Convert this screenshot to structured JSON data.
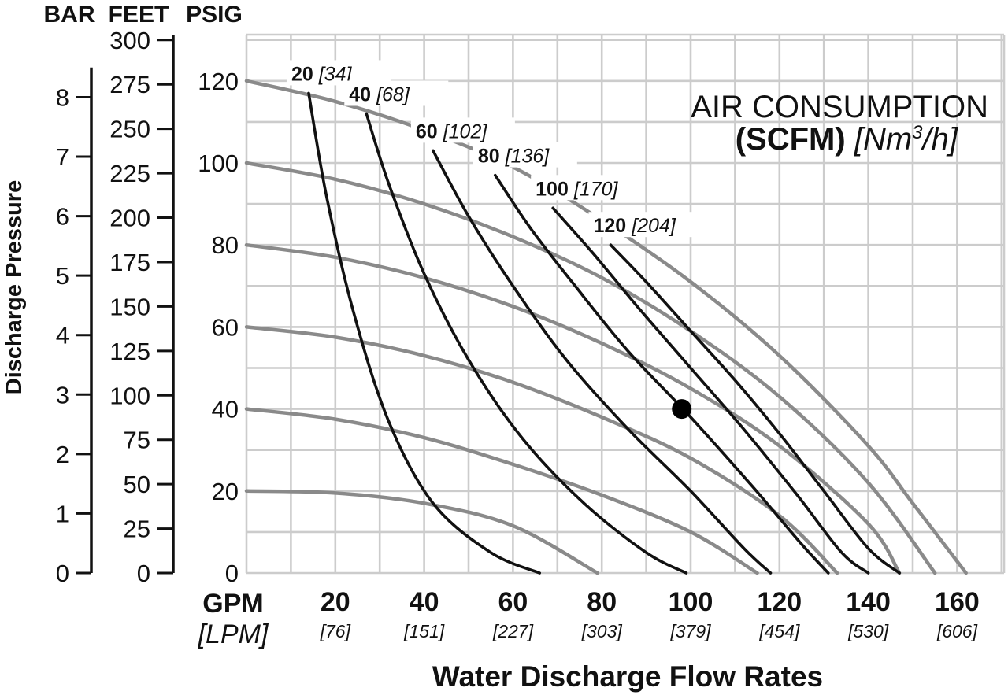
{
  "chart_data": {
    "type": "line",
    "title_line1": "AIR CONSUMPTION",
    "title_line2_bold": "(SCFM)",
    "title_line2_italic": "[Nm",
    "title_line2_sup": "3",
    "title_line2_tail": "/h]",
    "ylabel": "Discharge Pressure",
    "xlabel": "Water Discharge Flow Rates",
    "x_unit_main": "GPM",
    "x_unit_alt": "[LPM]",
    "xlim": [
      0,
      170
    ],
    "ylim": [
      0,
      130
    ],
    "x_ticks": [
      {
        "gpm": "20",
        "lpm": "[76]",
        "value": 20
      },
      {
        "gpm": "40",
        "lpm": "[151]",
        "value": 40
      },
      {
        "gpm": "60",
        "lpm": "[227]",
        "value": 60
      },
      {
        "gpm": "80",
        "lpm": "[303]",
        "value": 80
      },
      {
        "gpm": "100",
        "lpm": "[379]",
        "value": 100
      },
      {
        "gpm": "120",
        "lpm": "[454]",
        "value": 120
      },
      {
        "gpm": "140",
        "lpm": "[530]",
        "value": 140
      },
      {
        "gpm": "160",
        "lpm": "[606]",
        "value": 160
      }
    ],
    "psig_axis": {
      "header": "PSIG",
      "ticks": [
        {
          "label": "0",
          "value": 0
        },
        {
          "label": "20",
          "value": 20
        },
        {
          "label": "40",
          "value": 40
        },
        {
          "label": "60",
          "value": 60
        },
        {
          "label": "80",
          "value": 80
        },
        {
          "label": "100",
          "value": 100
        },
        {
          "label": "120",
          "value": 120
        }
      ]
    },
    "feet_axis": {
      "header": "FEET",
      "psig_per_unit": 0.4333,
      "ticks": [
        {
          "label": "0",
          "value": 0
        },
        {
          "label": "25",
          "value": 25
        },
        {
          "label": "50",
          "value": 50
        },
        {
          "label": "75",
          "value": 75
        },
        {
          "label": "100",
          "value": 100
        },
        {
          "label": "125",
          "value": 125
        },
        {
          "label": "150",
          "value": 150
        },
        {
          "label": "175",
          "value": 175
        },
        {
          "label": "200",
          "value": 200
        },
        {
          "label": "225",
          "value": 225
        },
        {
          "label": "250",
          "value": 250
        },
        {
          "label": "275",
          "value": 275
        },
        {
          "label": "300",
          "value": 300
        }
      ]
    },
    "bar_axis": {
      "header": "BAR",
      "psig_per_unit": 14.5038,
      "ticks": [
        {
          "label": "0",
          "value": 0
        },
        {
          "label": "1",
          "value": 1
        },
        {
          "label": "2",
          "value": 2
        },
        {
          "label": "3",
          "value": 3
        },
        {
          "label": "4",
          "value": 4
        },
        {
          "label": "5",
          "value": 5
        },
        {
          "label": "6",
          "value": 6
        },
        {
          "label": "7",
          "value": 7
        },
        {
          "label": "8",
          "value": 8
        }
      ]
    },
    "grid": true,
    "pressure_curves": [
      {
        "points": [
          [
            0,
            20
          ],
          [
            20,
            19.5
          ],
          [
            40,
            17
          ],
          [
            60,
            11.5
          ],
          [
            79,
            0
          ]
        ]
      },
      {
        "points": [
          [
            0,
            40
          ],
          [
            20,
            37.5
          ],
          [
            40,
            33
          ],
          [
            60,
            26.5
          ],
          [
            80,
            19
          ],
          [
            100,
            10
          ],
          [
            115,
            0
          ]
        ]
      },
      {
        "points": [
          [
            0,
            60
          ],
          [
            20,
            57.5
          ],
          [
            40,
            53
          ],
          [
            60,
            46.5
          ],
          [
            80,
            38
          ],
          [
            100,
            28
          ],
          [
            120,
            14
          ],
          [
            133,
            0
          ]
        ]
      },
      {
        "points": [
          [
            0,
            80
          ],
          [
            20,
            77
          ],
          [
            40,
            72
          ],
          [
            60,
            65
          ],
          [
            80,
            56
          ],
          [
            100,
            45
          ],
          [
            120,
            31
          ],
          [
            140,
            12
          ],
          [
            147,
            0
          ]
        ]
      },
      {
        "points": [
          [
            0,
            100
          ],
          [
            20,
            96
          ],
          [
            40,
            90
          ],
          [
            60,
            82
          ],
          [
            80,
            72
          ],
          [
            100,
            59
          ],
          [
            120,
            43
          ],
          [
            140,
            22
          ],
          [
            155,
            0
          ]
        ]
      },
      {
        "points": [
          [
            0,
            120
          ],
          [
            20,
            115
          ],
          [
            40,
            108
          ],
          [
            60,
            99
          ],
          [
            80,
            86
          ],
          [
            100,
            71
          ],
          [
            120,
            53
          ],
          [
            140,
            31
          ],
          [
            150,
            17
          ],
          [
            162,
            0
          ]
        ]
      }
    ],
    "air_curves": [
      {
        "scfm": "20",
        "nm3h": "[34]",
        "points": [
          [
            14,
            117
          ],
          [
            18,
            92
          ],
          [
            24,
            64
          ],
          [
            32,
            37
          ],
          [
            42,
            17
          ],
          [
            55,
            5
          ],
          [
            66,
            0
          ]
        ]
      },
      {
        "scfm": "40",
        "nm3h": "[68]",
        "points": [
          [
            27,
            112
          ],
          [
            32,
            95
          ],
          [
            40,
            73
          ],
          [
            50,
            52
          ],
          [
            62,
            33
          ],
          [
            76,
            17
          ],
          [
            90,
            5
          ],
          [
            99,
            0
          ]
        ]
      },
      {
        "scfm": "60",
        "nm3h": "[102]",
        "points": [
          [
            42,
            103
          ],
          [
            50,
            87
          ],
          [
            60,
            70
          ],
          [
            72,
            52
          ],
          [
            86,
            35
          ],
          [
            100,
            20
          ],
          [
            112,
            6
          ],
          [
            118,
            0
          ]
        ]
      },
      {
        "scfm": "80",
        "nm3h": "[136]",
        "points": [
          [
            56,
            97
          ],
          [
            64,
            84
          ],
          [
            74,
            70
          ],
          [
            86,
            54
          ],
          [
            100,
            38
          ],
          [
            114,
            21
          ],
          [
            125,
            7
          ],
          [
            131,
            0
          ]
        ]
      },
      {
        "scfm": "100",
        "nm3h": "[170]",
        "points": [
          [
            69,
            89
          ],
          [
            78,
            78
          ],
          [
            88,
            65
          ],
          [
            100,
            50
          ],
          [
            112,
            35
          ],
          [
            124,
            19
          ],
          [
            134,
            5
          ],
          [
            140,
            0
          ]
        ]
      },
      {
        "scfm": "120",
        "nm3h": "[204]",
        "points": [
          [
            82,
            80
          ],
          [
            90,
            71
          ],
          [
            100,
            59
          ],
          [
            110,
            47
          ],
          [
            120,
            34
          ],
          [
            130,
            20
          ],
          [
            140,
            6
          ],
          [
            147,
            0
          ]
        ]
      }
    ],
    "highlight_point": {
      "x": 98,
      "y": 40
    }
  }
}
